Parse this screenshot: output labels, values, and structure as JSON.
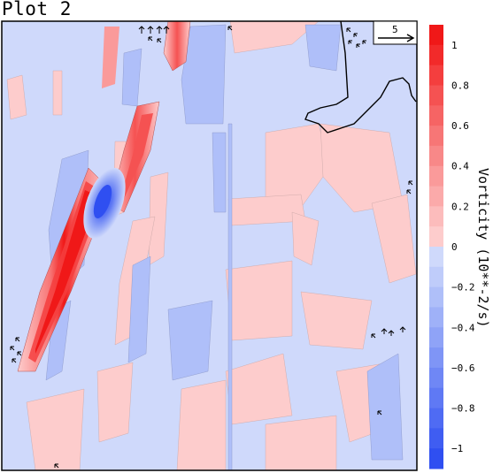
{
  "title": "Plot 2",
  "chart_data": {
    "type": "heatmap",
    "title": "Plot 2",
    "colorbar": {
      "label": "Vorticity (10**-2/s)",
      "ticks": [
        1,
        0.8,
        0.6,
        0.4,
        0.2,
        0,
        -0.2,
        -0.4,
        -0.6,
        -0.8,
        -1
      ],
      "tick_labels": [
        "1",
        "0.8",
        "0.6",
        "0.4",
        "0.2",
        "0",
        "−0.2",
        "−0.4",
        "−0.6",
        "−0.8",
        "−1"
      ],
      "range": [
        -1.1,
        1.1
      ],
      "levels": [
        {
          "v": 1.05,
          "color": "#f01818"
        },
        {
          "v": 0.95,
          "color": "#f22a2a"
        },
        {
          "v": 0.85,
          "color": "#f43e3e"
        },
        {
          "v": 0.75,
          "color": "#f55252"
        },
        {
          "v": 0.65,
          "color": "#f66464"
        },
        {
          "v": 0.55,
          "color": "#f77676"
        },
        {
          "v": 0.45,
          "color": "#f88888"
        },
        {
          "v": 0.35,
          "color": "#fa9a9a"
        },
        {
          "v": 0.25,
          "color": "#fbaaaa"
        },
        {
          "v": 0.15,
          "color": "#fcbcbc"
        },
        {
          "v": 0.05,
          "color": "#fdcccc"
        },
        {
          "v": -0.05,
          "color": "#cfd9fb"
        },
        {
          "v": -0.15,
          "color": "#bfccfa"
        },
        {
          "v": -0.25,
          "color": "#afbff9"
        },
        {
          "v": -0.35,
          "color": "#9fb1f8"
        },
        {
          "v": -0.45,
          "color": "#8fa3f7"
        },
        {
          "v": -0.55,
          "color": "#7f95f6"
        },
        {
          "v": -0.65,
          "color": "#6f87f5"
        },
        {
          "v": -0.75,
          "color": "#5f79f4"
        },
        {
          "v": -0.85,
          "color": "#4f6bf3"
        },
        {
          "v": -0.95,
          "color": "#3f5df2"
        },
        {
          "v": -1.05,
          "color": "#2f4ff1"
        }
      ]
    },
    "vector_reference": {
      "label": "5"
    },
    "features": [
      {
        "kind": "band",
        "sign": "positive",
        "peak": 1.0
      },
      {
        "kind": "band",
        "sign": "positive",
        "peak": 0.7
      },
      {
        "kind": "band",
        "sign": "positive",
        "peak": 0.6
      },
      {
        "kind": "blob",
        "sign": "negative",
        "peak": -0.9
      }
    ],
    "colors": {
      "positive_max": "#f01818",
      "negative_max": "#2f4ff1",
      "background": "#cfd9fb"
    }
  }
}
